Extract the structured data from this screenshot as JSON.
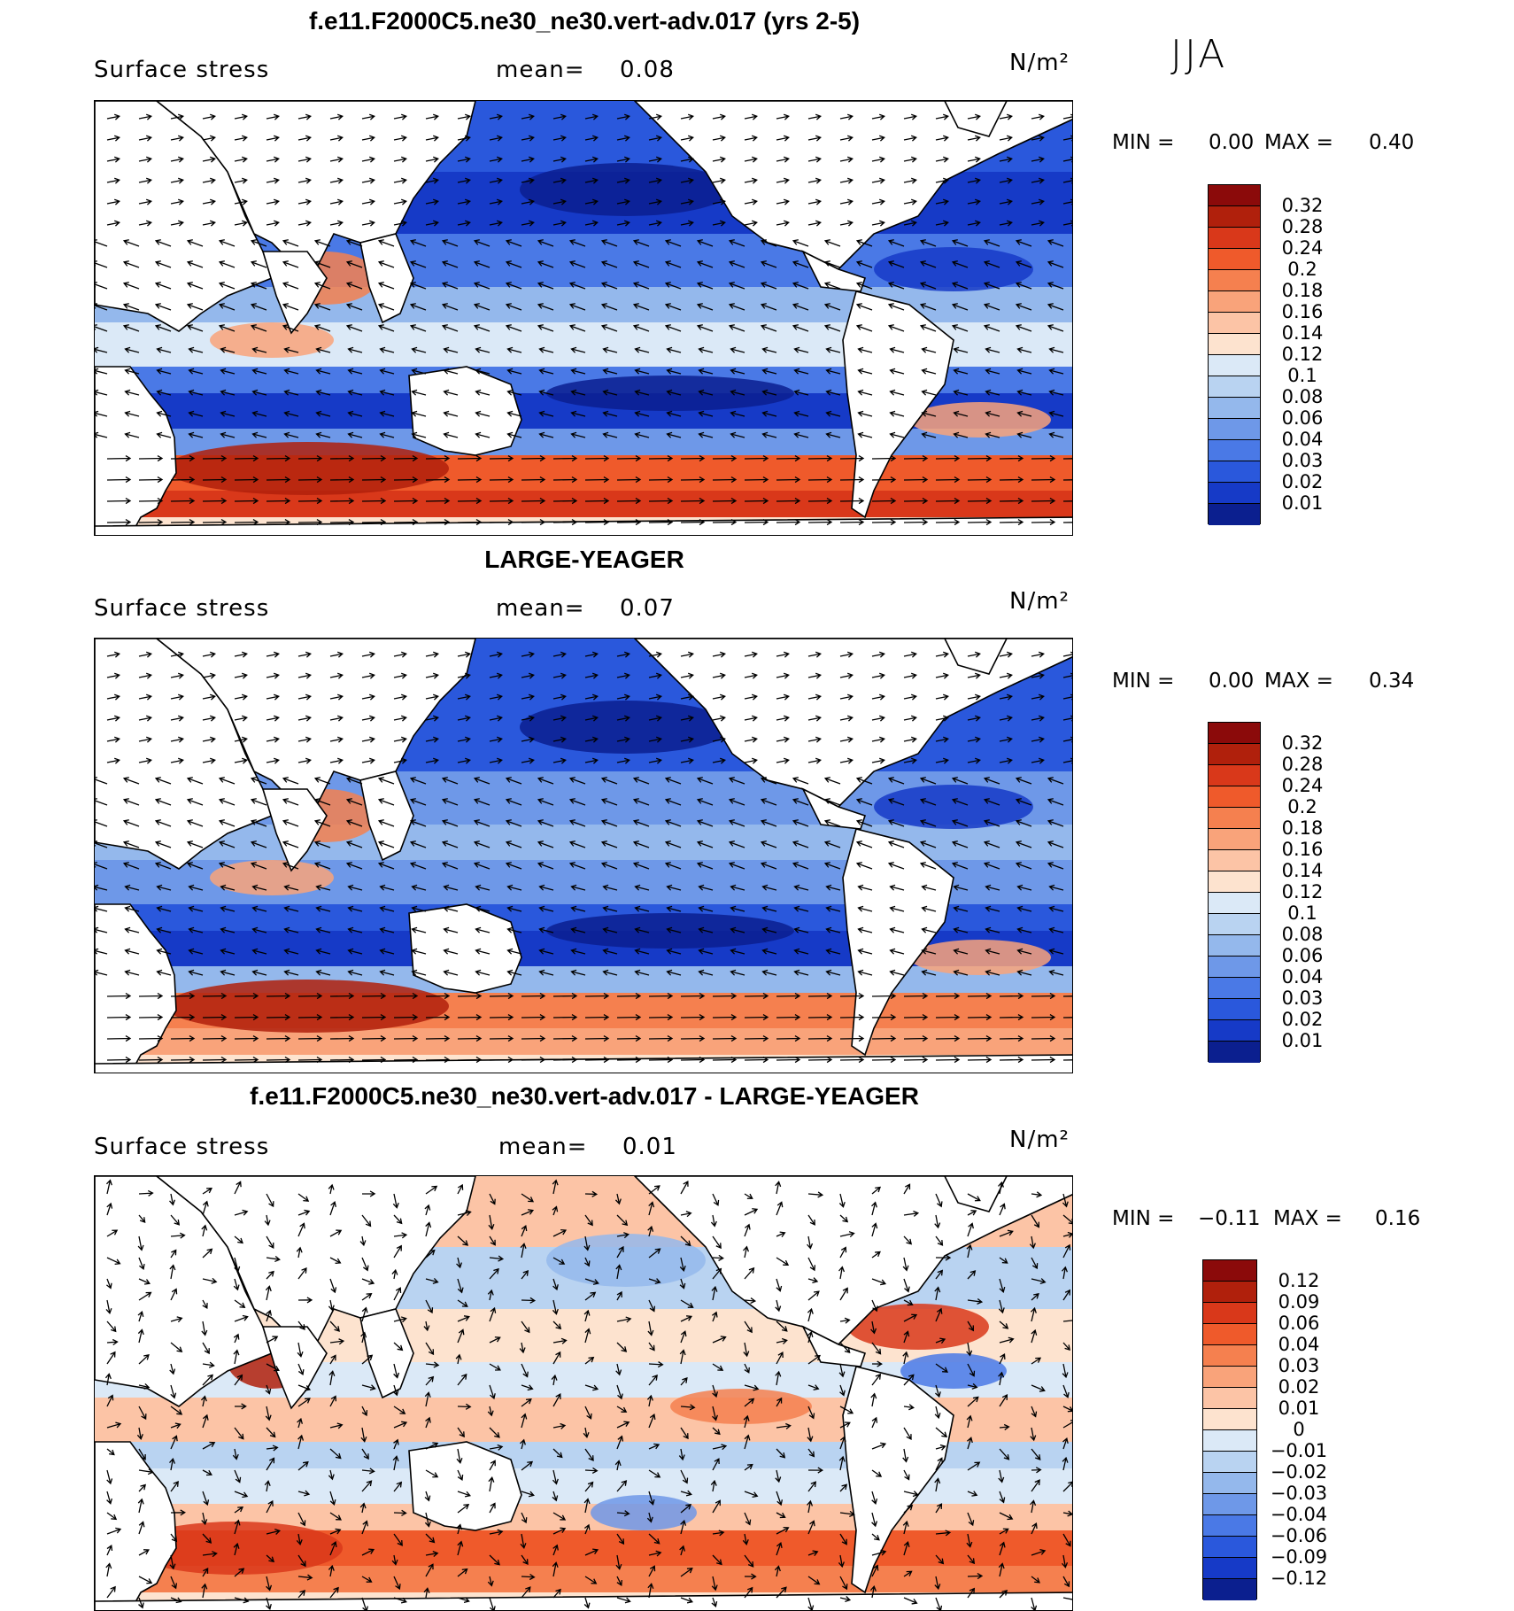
{
  "season": "JJA",
  "panels": [
    {
      "title": "f.e11.F2000C5.ne30_ne30.vert-adv.017 (yrs 2-5)",
      "variable": "Surface stress",
      "mean_label": "mean=",
      "mean_value": "0.08",
      "units": "N/m²",
      "min_label": "MIN =",
      "min_value": "0.00",
      "max_label": "MAX =",
      "max_value": "0.40",
      "colorbar": {
        "labels": [
          "0.32",
          "0.28",
          "0.24",
          "0.2",
          "0.18",
          "0.16",
          "0.14",
          "0.12",
          "0.1",
          "0.08",
          "0.06",
          "0.04",
          "0.03",
          "0.02",
          "0.01"
        ],
        "colors": [
          "#8b0a0a",
          "#b0200c",
          "#d9381a",
          "#ef5a2b",
          "#f5804f",
          "#f9a37a",
          "#fcc4a6",
          "#fde3cf",
          "#dbe9f7",
          "#b9d3f1",
          "#94b8ec",
          "#6e98e8",
          "#4a79e6",
          "#2a58dc",
          "#163ac7",
          "#0b1f8f"
        ]
      }
    },
    {
      "title": "LARGE-YEAGER",
      "variable": "Surface stress",
      "mean_label": "mean=",
      "mean_value": "0.07",
      "units": "N/m²",
      "min_label": "MIN =",
      "min_value": "0.00",
      "max_label": "MAX =",
      "max_value": "0.34",
      "colorbar": {
        "labels": [
          "0.32",
          "0.28",
          "0.24",
          "0.2",
          "0.18",
          "0.16",
          "0.14",
          "0.12",
          "0.1",
          "0.08",
          "0.06",
          "0.04",
          "0.03",
          "0.02",
          "0.01"
        ],
        "colors": [
          "#8b0a0a",
          "#b0200c",
          "#d9381a",
          "#ef5a2b",
          "#f5804f",
          "#f9a37a",
          "#fcc4a6",
          "#fde3cf",
          "#dbe9f7",
          "#b9d3f1",
          "#94b8ec",
          "#6e98e8",
          "#4a79e6",
          "#2a58dc",
          "#163ac7",
          "#0b1f8f"
        ]
      }
    },
    {
      "title": "f.e11.F2000C5.ne30_ne30.vert-adv.017 - LARGE-YEAGER",
      "variable": "Surface stress",
      "mean_label": "mean=",
      "mean_value": "0.01",
      "units": "N/m²",
      "min_label": "MIN =",
      "min_value": "−0.11",
      "max_label": "MAX =",
      "max_value": "0.16",
      "colorbar": {
        "labels": [
          "0.12",
          "0.09",
          "0.06",
          "0.04",
          "0.03",
          "0.02",
          "0.01",
          "0",
          "−0.01",
          "−0.02",
          "−0.03",
          "−0.04",
          "−0.06",
          "−0.09",
          "−0.12"
        ],
        "colors": [
          "#8b0a0a",
          "#b0200c",
          "#d9381a",
          "#ef5a2b",
          "#f5804f",
          "#f9a37a",
          "#fcc4a6",
          "#fde3cf",
          "#dbe9f7",
          "#b9d3f1",
          "#94b8ec",
          "#6e98e8",
          "#4a79e6",
          "#2a58dc",
          "#163ac7",
          "#0b1f8f"
        ]
      }
    }
  ]
}
